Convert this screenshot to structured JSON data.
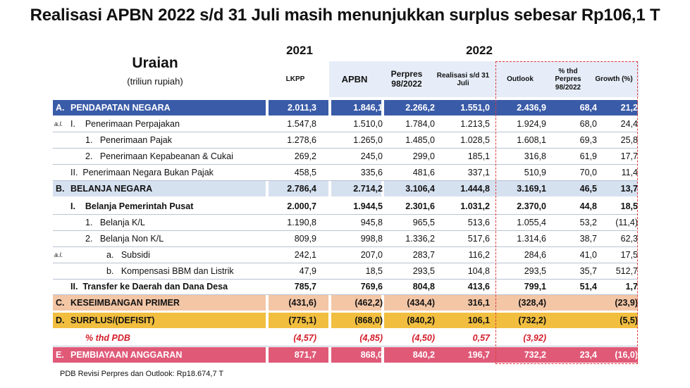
{
  "title": "Realisasi APBN 2022 s/d 31 Juli masih menunjukkan surplus sebesar Rp106,1 T",
  "header": {
    "uraian": "Uraian",
    "uraian_sub": "(triliun rupiah)",
    "year_2021": "2021",
    "year_2022": "2022",
    "columns": [
      "LKPP",
      "APBN",
      "Perpres 98/2022",
      "Realisasi s/d 31 Juli",
      "Outlook",
      "% thd Perpres 98/2022",
      "Growth (%)"
    ]
  },
  "colors": {
    "pendapatan": "#3a5ba8",
    "belanja": "#d6e1f0",
    "keseimbangan": "#f3c6a6",
    "surplus": "#f1be3f",
    "pembiayaan": "#e05a78",
    "header_bg": "#e6edf8",
    "dash": "#e0393e"
  },
  "rows": [
    {
      "prefix": "A.",
      "label": "PENDAPATAN NEGARA",
      "values": [
        "2.011,3",
        "1.846,1",
        "2.266,2",
        "1.551,0",
        "2.436,9",
        "68,4",
        "21,2"
      ]
    },
    {
      "prefix": "a.l.",
      "label": "I.    Penerimaan Perpajakan",
      "values": [
        "1.547,8",
        "1.510,0",
        "1.784,0",
        "1.213,5",
        "1.924,9",
        "68,0",
        "24,4"
      ]
    },
    {
      "prefix": "",
      "label": "1.   Penerimaan Pajak",
      "values": [
        "1.278,6",
        "1.265,0",
        "1.485,0",
        "1.028,5",
        "1.608,1",
        "69,3",
        "25,8"
      ]
    },
    {
      "prefix": "",
      "label": "2.   Penerimaan Kepabeanan & Cukai",
      "values": [
        "269,2",
        "245,0",
        "299,0",
        "185,1",
        "316,8",
        "61,9",
        "17,7"
      ]
    },
    {
      "prefix": "",
      "label": "II.  Penerimaan Negara Bukan Pajak",
      "values": [
        "458,5",
        "335,6",
        "481,6",
        "337,1",
        "510,9",
        "70,0",
        "11,4"
      ]
    },
    {
      "prefix": "B.",
      "label": "BELANJA NEGARA",
      "values": [
        "2.786,4",
        "2.714,2",
        "3.106,4",
        "1.444,8",
        "3.169,1",
        "46,5",
        "13,7"
      ]
    },
    {
      "prefix": "",
      "label": "I.    Belanja Pemerintah Pusat",
      "values": [
        "2.000,7",
        "1.944,5",
        "2.301,6",
        "1.031,2",
        "2.370,0",
        "44,8",
        "18,5"
      ]
    },
    {
      "prefix": "",
      "label": "1.   Belanja K/L",
      "values": [
        "1.190,8",
        "945,8",
        "965,5",
        "513,6",
        "1.055,4",
        "53,2",
        "(11,4)"
      ]
    },
    {
      "prefix": "",
      "label": "2.   Belanja Non K/L",
      "values": [
        "809,9",
        "998,8",
        "1.336,2",
        "517,6",
        "1.314,6",
        "38,7",
        "62,3"
      ]
    },
    {
      "prefix": "a.l.",
      "label": "a.   Subsidi",
      "values": [
        "242,1",
        "207,0",
        "283,7",
        "116,2",
        "284,6",
        "41,0",
        "17,5"
      ]
    },
    {
      "prefix": "",
      "label": "b.   Kompensasi BBM dan Listrik",
      "values": [
        "47,9",
        "18,5",
        "293,5",
        "104,8",
        "293,5",
        "35,7",
        "512,7"
      ]
    },
    {
      "prefix": "",
      "label": "II.  Transfer ke Daerah dan Dana Desa",
      "values": [
        "785,7",
        "769,6",
        "804,8",
        "413,6",
        "799,1",
        "51,4",
        "1,7"
      ]
    },
    {
      "prefix": "C.",
      "label": "KESEIMBANGAN PRIMER",
      "values": [
        "(431,6)",
        "(462,2)",
        "(434,4)",
        "316,1",
        "(328,4)",
        "",
        "(23,9)"
      ]
    },
    {
      "prefix": "D.",
      "label": "SURPLUS/(DEFISIT)",
      "values": [
        "(775,1)",
        "(868,0)",
        "(840,2)",
        "106,1",
        "(732,2)",
        "",
        "(5,5)"
      ]
    },
    {
      "prefix": "",
      "label": "% thd PDB",
      "values": [
        "(4,57)",
        "(4,85)",
        "(4,50)",
        "0,57",
        "(3,92)",
        "",
        ""
      ]
    },
    {
      "prefix": "E.",
      "label": "PEMBIAYAAN ANGGARAN",
      "values": [
        "871,7",
        "868,0",
        "840,2",
        "196,7",
        "732,2",
        "23,4",
        "(16,0)"
      ]
    }
  ],
  "footnote": "PDB Revisi Perpres dan Outlook: Rp18.674,7 T"
}
